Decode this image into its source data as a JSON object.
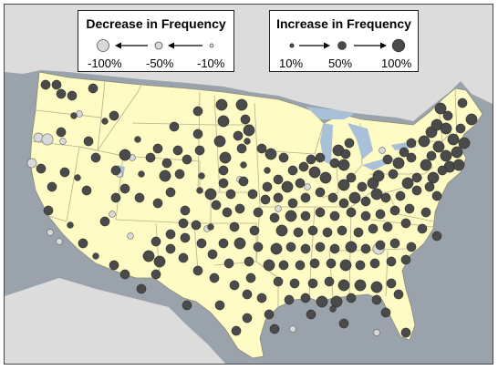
{
  "colors": {
    "ocean": "#9aa3ab",
    "land_us": "#fffbc4",
    "land_neighbors": "#dcdcdc",
    "state_border": "#b8b08a",
    "decrease_fill": "#d9d9d9",
    "increase_fill": "#4a4a4a",
    "water": "#a8c0d8"
  },
  "legend": {
    "decrease": {
      "title": "Decrease in Frequency",
      "labels": [
        "-100%",
        "-50%",
        "-10%"
      ],
      "values": [
        -100,
        -50,
        -10
      ],
      "icon": "left-arrow-icon"
    },
    "increase": {
      "title": "Increase in Frequency",
      "labels": [
        "10%",
        "50%",
        "100%"
      ],
      "values": [
        10,
        50,
        100
      ],
      "icon": "right-arrow-icon"
    }
  },
  "stations": {
    "increase": [
      [
        45,
        88,
        40
      ],
      [
        57,
        88,
        40
      ],
      [
        62,
        98,
        40
      ],
      [
        97,
        92,
        40
      ],
      [
        74,
        100,
        40
      ],
      [
        76,
        122,
        10
      ],
      [
        120,
        122,
        40
      ],
      [
        212,
        117,
        40
      ],
      [
        238,
        110,
        70
      ],
      [
        260,
        110,
        70
      ],
      [
        240,
        128,
        70
      ],
      [
        264,
        126,
        40
      ],
      [
        268,
        138,
        70
      ],
      [
        212,
        142,
        40
      ],
      [
        236,
        150,
        70
      ],
      [
        256,
        144,
        40
      ],
      [
        260,
        158,
        40
      ],
      [
        266,
        150,
        10
      ],
      [
        186,
        134,
        40
      ],
      [
        168,
        158,
        40
      ],
      [
        190,
        160,
        40
      ],
      [
        214,
        160,
        40
      ],
      [
        160,
        168,
        40
      ],
      [
        178,
        174,
        40
      ],
      [
        200,
        170,
        40
      ],
      [
        132,
        165,
        70
      ],
      [
        146,
        148,
        10
      ],
      [
        150,
        186,
        10
      ],
      [
        176,
        188,
        70
      ],
      [
        192,
        186,
        40
      ],
      [
        216,
        188,
        10
      ],
      [
        242,
        168,
        70
      ],
      [
        240,
        182,
        40
      ],
      [
        240,
        196,
        40
      ],
      [
        248,
        208,
        40
      ],
      [
        226,
        208,
        70
      ],
      [
        232,
        220,
        40
      ],
      [
        244,
        228,
        40
      ],
      [
        258,
        224,
        40
      ],
      [
        262,
        176,
        10
      ],
      [
        262,
        194,
        40
      ],
      [
        272,
        208,
        40
      ],
      [
        282,
        158,
        40
      ],
      [
        292,
        164,
        70
      ],
      [
        306,
        168,
        40
      ],
      [
        316,
        182,
        40
      ],
      [
        288,
        182,
        10
      ],
      [
        300,
        192,
        40
      ],
      [
        288,
        200,
        40
      ],
      [
        310,
        200,
        70
      ],
      [
        324,
        196,
        40
      ],
      [
        328,
        178,
        40
      ],
      [
        336,
        170,
        40
      ],
      [
        346,
        168,
        40
      ],
      [
        340,
        184,
        70
      ],
      [
        352,
        190,
        70
      ],
      [
        362,
        174,
        40
      ],
      [
        372,
        176,
        70
      ],
      [
        366,
        160,
        70
      ],
      [
        378,
        152,
        40
      ],
      [
        374,
        164,
        40
      ],
      [
        380,
        190,
        40
      ],
      [
        372,
        198,
        70
      ],
      [
        392,
        200,
        40
      ],
      [
        404,
        196,
        70
      ],
      [
        410,
        188,
        70
      ],
      [
        426,
        186,
        40
      ],
      [
        420,
        170,
        40
      ],
      [
        432,
        174,
        70
      ],
      [
        438,
        162,
        40
      ],
      [
        446,
        168,
        40
      ],
      [
        446,
        152,
        40
      ],
      [
        460,
        150,
        70
      ],
      [
        468,
        140,
        70
      ],
      [
        474,
        132,
        70
      ],
      [
        484,
        136,
        70
      ],
      [
        486,
        122,
        40
      ],
      [
        492,
        148,
        70
      ],
      [
        476,
        156,
        70
      ],
      [
        484,
        166,
        70
      ],
      [
        488,
        178,
        70
      ],
      [
        496,
        162,
        70
      ],
      [
        480,
        182,
        40
      ],
      [
        470,
        190,
        70
      ],
      [
        462,
        176,
        70
      ],
      [
        452,
        190,
        40
      ],
      [
        442,
        196,
        70
      ],
      [
        434,
        210,
        40
      ],
      [
        452,
        204,
        40
      ],
      [
        466,
        200,
        40
      ],
      [
        474,
        210,
        40
      ],
      [
        502,
        108,
        40
      ],
      [
        512,
        126,
        70
      ],
      [
        478,
        114,
        70
      ],
      [
        500,
        136,
        40
      ],
      [
        504,
        152,
        70
      ],
      [
        498,
        176,
        70
      ],
      [
        468,
        166,
        40
      ],
      [
        418,
        212,
        40
      ],
      [
        408,
        208,
        70
      ],
      [
        396,
        216,
        40
      ],
      [
        384,
        212,
        70
      ],
      [
        372,
        218,
        40
      ],
      [
        360,
        212,
        40
      ],
      [
        346,
        206,
        40
      ],
      [
        330,
        212,
        40
      ],
      [
        316,
        218,
        40
      ],
      [
        300,
        212,
        40
      ],
      [
        286,
        214,
        40
      ],
      [
        278,
        228,
        40
      ],
      [
        296,
        234,
        40
      ],
      [
        314,
        232,
        70
      ],
      [
        330,
        232,
        40
      ],
      [
        346,
        228,
        40
      ],
      [
        362,
        232,
        40
      ],
      [
        380,
        228,
        40
      ],
      [
        396,
        232,
        40
      ],
      [
        412,
        230,
        40
      ],
      [
        428,
        226,
        40
      ],
      [
        444,
        224,
        40
      ],
      [
        462,
        228,
        40
      ],
      [
        304,
        248,
        70
      ],
      [
        322,
        250,
        40
      ],
      [
        338,
        248,
        40
      ],
      [
        354,
        250,
        40
      ],
      [
        370,
        248,
        40
      ],
      [
        388,
        250,
        40
      ],
      [
        404,
        246,
        40
      ],
      [
        420,
        244,
        40
      ],
      [
        440,
        240,
        40
      ],
      [
        458,
        246,
        40
      ],
      [
        474,
        254,
        40
      ],
      [
        298,
        268,
        70
      ],
      [
        314,
        266,
        40
      ],
      [
        330,
        268,
        40
      ],
      [
        346,
        266,
        40
      ],
      [
        362,
        268,
        40
      ],
      [
        380,
        266,
        70
      ],
      [
        396,
        268,
        40
      ],
      [
        412,
        264,
        40
      ],
      [
        428,
        262,
        40
      ],
      [
        446,
        266,
        40
      ],
      [
        290,
        286,
        70
      ],
      [
        306,
        286,
        40
      ],
      [
        324,
        286,
        40
      ],
      [
        340,
        284,
        40
      ],
      [
        358,
        284,
        40
      ],
      [
        374,
        286,
        70
      ],
      [
        390,
        286,
        40
      ],
      [
        406,
        284,
        40
      ],
      [
        424,
        282,
        40
      ],
      [
        440,
        280,
        40
      ],
      [
        300,
        304,
        40
      ],
      [
        318,
        306,
        40
      ],
      [
        338,
        306,
        40
      ],
      [
        356,
        304,
        40
      ],
      [
        372,
        308,
        70
      ],
      [
        390,
        308,
        70
      ],
      [
        408,
        310,
        70
      ],
      [
        424,
        306,
        40
      ],
      [
        432,
        318,
        40
      ],
      [
        312,
        324,
        40
      ],
      [
        330,
        322,
        40
      ],
      [
        348,
        326,
        70
      ],
      [
        364,
        326,
        70
      ],
      [
        380,
        322,
        40
      ],
      [
        408,
        324,
        40
      ],
      [
        418,
        338,
        40
      ],
      [
        336,
        340,
        40
      ],
      [
        360,
        334,
        10
      ],
      [
        274,
        248,
        40
      ],
      [
        278,
        266,
        40
      ],
      [
        268,
        282,
        40
      ],
      [
        270,
        300,
        40
      ],
      [
        252,
        244,
        40
      ],
      [
        240,
        262,
        40
      ],
      [
        258,
        262,
        70
      ],
      [
        246,
        284,
        40
      ],
      [
        228,
        274,
        40
      ],
      [
        216,
        262,
        40
      ],
      [
        226,
        244,
        10
      ],
      [
        210,
        242,
        40
      ],
      [
        196,
        240,
        40
      ],
      [
        182,
        252,
        40
      ],
      [
        198,
        256,
        40
      ],
      [
        182,
        268,
        40
      ],
      [
        166,
        260,
        40
      ],
      [
        158,
        276,
        70
      ],
      [
        170,
        282,
        70
      ],
      [
        196,
        278,
        40
      ],
      [
        212,
        292,
        40
      ],
      [
        230,
        300,
        40
      ],
      [
        252,
        308,
        40
      ],
      [
        266,
        318,
        40
      ],
      [
        282,
        322,
        40
      ],
      [
        290,
        340,
        40
      ],
      [
        296,
        356,
        40
      ],
      [
        266,
        344,
        40
      ],
      [
        254,
        358,
        40
      ],
      [
        236,
        330,
        40
      ],
      [
        200,
        330,
        40
      ],
      [
        166,
        296,
        40
      ],
      [
        150,
        312,
        40
      ],
      [
        132,
        296,
        40
      ],
      [
        120,
        286,
        40
      ],
      [
        100,
        276,
        10
      ],
      [
        86,
        262,
        40
      ],
      [
        72,
        242,
        10
      ],
      [
        48,
        226,
        40
      ],
      [
        122,
        212,
        40
      ],
      [
        132,
        202,
        40
      ],
      [
        148,
        212,
        40
      ],
      [
        168,
        218,
        40
      ],
      [
        182,
        206,
        40
      ],
      [
        214,
        204,
        10
      ],
      [
        198,
        226,
        40
      ],
      [
        110,
        238,
        40
      ],
      [
        90,
        204,
        40
      ],
      [
        80,
        190,
        10
      ],
      [
        66,
        184,
        40
      ],
      [
        40,
        180,
        40
      ],
      [
        52,
        200,
        40
      ],
      [
        62,
        140,
        40
      ],
      [
        92,
        150,
        40
      ],
      [
        100,
        168,
        40
      ],
      [
        122,
        182,
        40
      ],
      [
        110,
        128,
        10
      ],
      [
        440,
        360,
        40
      ],
      [
        372,
        350,
        40
      ]
    ],
    "decrease": [
      [
        37,
        146,
        40
      ],
      [
        47,
        148,
        70
      ],
      [
        64,
        150,
        10
      ],
      [
        30,
        174,
        40
      ],
      [
        50,
        250,
        10
      ],
      [
        138,
        254,
        10
      ],
      [
        222,
        246,
        10
      ],
      [
        410,
        268,
        70
      ],
      [
        126,
        186,
        10
      ],
      [
        140,
        168,
        10
      ],
      [
        82,
        120,
        10
      ],
      [
        414,
        160,
        10
      ],
      [
        454,
        190,
        10
      ],
      [
        332,
        200,
        10
      ],
      [
        300,
        224,
        10
      ],
      [
        258,
        192,
        10
      ],
      [
        316,
        356,
        10
      ],
      [
        408,
        360,
        10
      ],
      [
        60,
        260,
        10
      ],
      [
        118,
        230,
        10
      ]
    ]
  }
}
